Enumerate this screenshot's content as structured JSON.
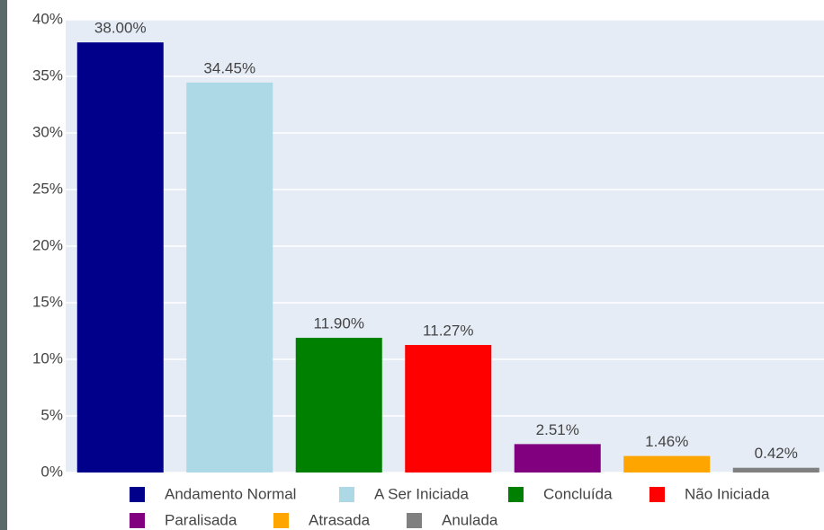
{
  "chart_data": {
    "type": "bar",
    "categories": [
      "Andamento Normal",
      "A Ser Iniciada",
      "Concluída",
      "Não Iniciada",
      "Paralisada",
      "Atrasada",
      "Anulada"
    ],
    "values": [
      38.0,
      34.45,
      11.9,
      11.27,
      2.51,
      1.46,
      0.42
    ],
    "value_labels": [
      "38.00%",
      "34.45%",
      "11.90%",
      "11.27%",
      "2.51%",
      "1.46%",
      "0.42%"
    ],
    "colors": [
      "#00008b",
      "#add8e6",
      "#008000",
      "#ff0000",
      "#800080",
      "#ffa500",
      "#808080"
    ],
    "ylim": [
      0,
      40
    ],
    "yticks": [
      {
        "value": 0,
        "label": "0%"
      },
      {
        "value": 5,
        "label": "5%"
      },
      {
        "value": 10,
        "label": "10%"
      },
      {
        "value": 15,
        "label": "15%"
      },
      {
        "value": 20,
        "label": "20%"
      },
      {
        "value": 25,
        "label": "25%"
      },
      {
        "value": 30,
        "label": "30%"
      },
      {
        "value": 35,
        "label": "35%"
      },
      {
        "value": 40,
        "label": "40%"
      }
    ],
    "grid": true,
    "legend": "bottom"
  }
}
